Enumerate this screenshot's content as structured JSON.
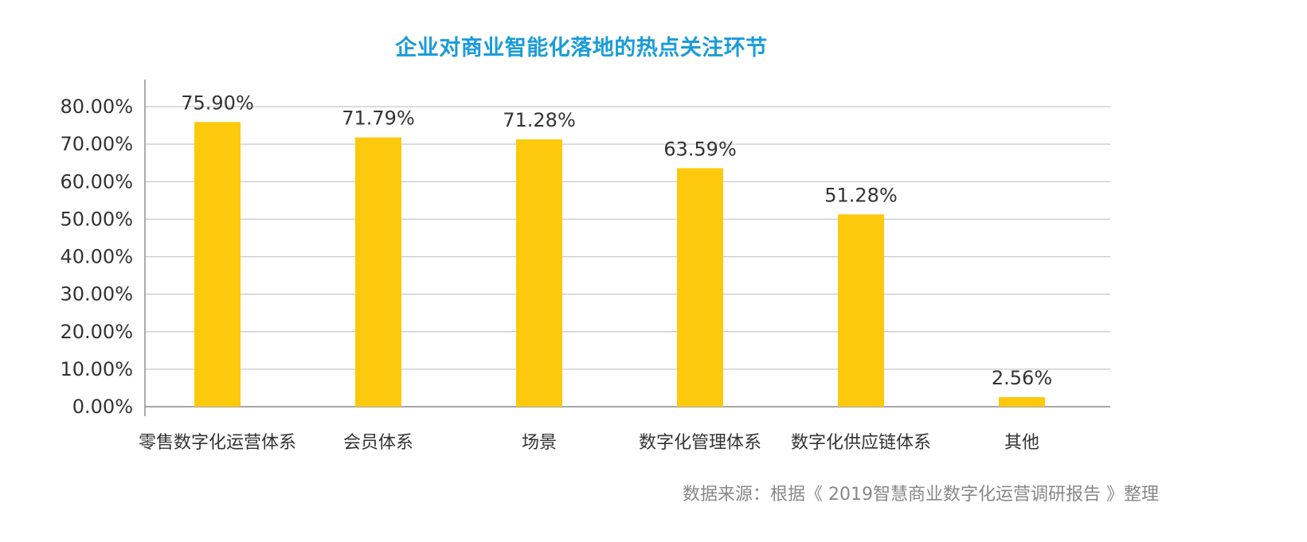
{
  "chart_data": {
    "type": "bar",
    "title": "企业对商业智能化落地的热点关注环节",
    "categories": [
      "零售数字化运营体系",
      "会员体系",
      "场景",
      "数字化管理体系",
      "数字化供应链体系",
      "其他"
    ],
    "values": [
      75.9,
      71.79,
      71.28,
      63.59,
      51.28,
      2.56
    ],
    "value_labels": [
      "75.90%",
      "71.79%",
      "71.28%",
      "63.59%",
      "51.28%",
      "2.56%"
    ],
    "y_ticks": [
      "0.00%",
      "10.00%",
      "20.00%",
      "30.00%",
      "40.00%",
      "50.00%",
      "60.00%",
      "70.00%",
      "80.00%"
    ],
    "ylim": [
      0,
      80
    ],
    "grid": true,
    "colors": {
      "bar": "#fcc90c",
      "title": "#1a9cd8",
      "grid": "#c8c8c8",
      "axis": "#888888",
      "text": "#333333",
      "note": "#888888"
    }
  },
  "source_note": "数据来源：根据《 2019智慧商业数字化运营调研报告 》整理"
}
